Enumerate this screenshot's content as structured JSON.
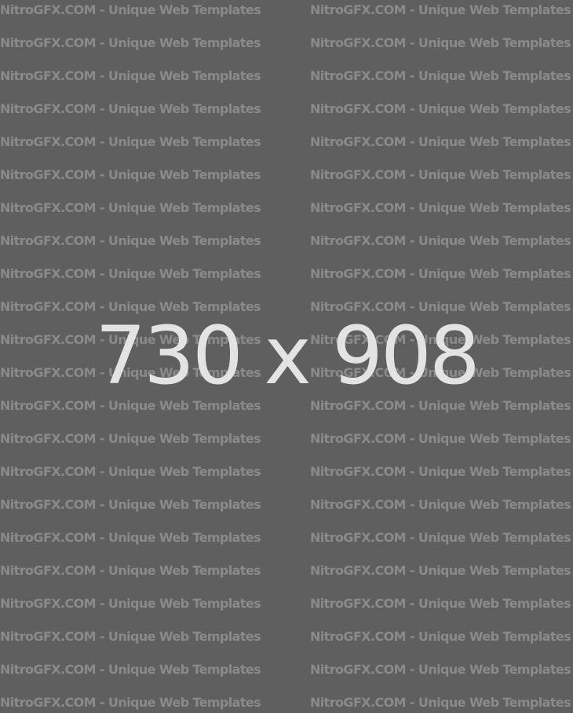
{
  "watermark": {
    "text": "NitroGFX.COM - Unique Web Templates"
  },
  "placeholder": {
    "dimension_label": "730 x 908"
  },
  "colors": {
    "background": "#5f5f5f",
    "watermark_text": "#8f8f8f",
    "dimension_text": "#e3e3e3"
  }
}
